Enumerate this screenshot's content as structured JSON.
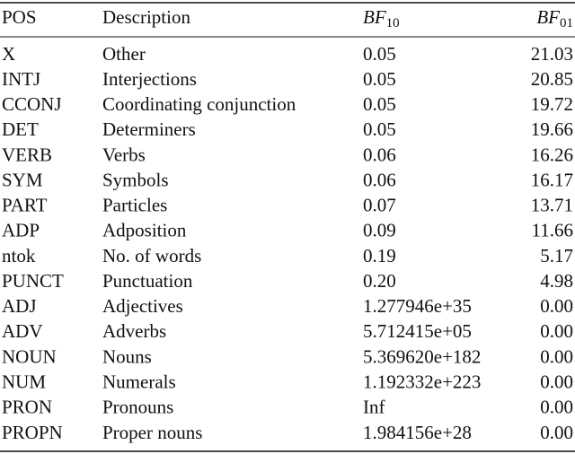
{
  "table": {
    "header": [
      "POS",
      "Description",
      {
        "main": "BF",
        "sub": "10"
      },
      {
        "main": "BF",
        "sub": "01"
      }
    ],
    "rows": [
      [
        "X",
        "Other",
        "0.05",
        "21.03"
      ],
      [
        "INTJ",
        "Interjections",
        "0.05",
        "20.85"
      ],
      [
        "CCONJ",
        "Coordinating conjunction",
        "0.05",
        "19.72"
      ],
      [
        "DET",
        "Determiners",
        "0.05",
        "19.66"
      ],
      [
        "VERB",
        "Verbs",
        "0.06",
        "16.26"
      ],
      [
        "SYM",
        "Symbols",
        "0.06",
        "16.17"
      ],
      [
        "PART",
        "Particles",
        "0.07",
        "13.71"
      ],
      [
        "ADP",
        "Adposition",
        "0.09",
        "11.66"
      ],
      [
        "ntok",
        "No. of words",
        "0.19",
        "5.17"
      ],
      [
        "PUNCT",
        "Punctuation",
        "0.20",
        "4.98"
      ],
      [
        "ADJ",
        "Adjectives",
        "1.277946e+35",
        "0.00"
      ],
      [
        "ADV",
        "Adverbs",
        "5.712415e+05",
        "0.00"
      ],
      [
        "NOUN",
        "Nouns",
        "5.369620e+182",
        "0.00"
      ],
      [
        "NUM",
        "Numerals",
        "1.192332e+223",
        "0.00"
      ],
      [
        "PRON",
        "Pronouns",
        "Inf",
        "0.00"
      ],
      [
        "PROPN",
        "Proper nouns",
        "1.984156e+28",
        "0.00"
      ]
    ]
  }
}
